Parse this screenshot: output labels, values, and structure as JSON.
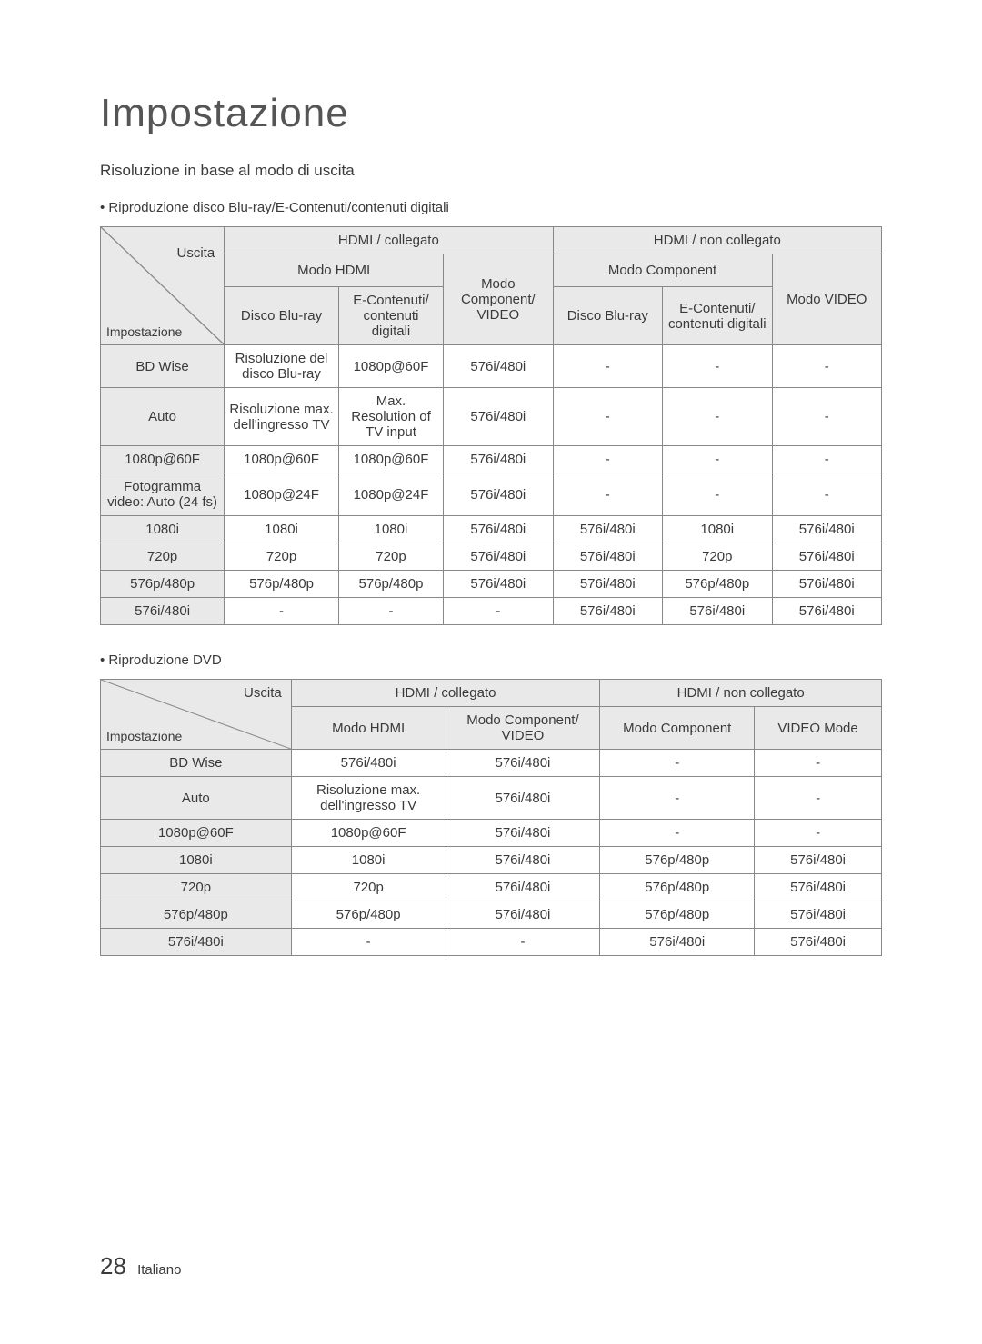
{
  "title": "Impostazione",
  "subtitle": "Risoluzione in base al modo di uscita",
  "bullet1": "• Riproduzione disco Blu-ray/E-Contenuti/contenuti digitali",
  "bullet2": "• Riproduzione DVD",
  "footer": {
    "page": "28",
    "lang": "Italiano"
  },
  "labels": {
    "uscita": "Uscita",
    "impostazione": "Impostazione"
  },
  "t1": {
    "h": {
      "hdmi_on": "HDMI / collegato",
      "hdmi_off": "HDMI / non collegato",
      "modo_hdmi": "Modo HDMI",
      "modo_comp_video": "Modo Component/ VIDEO",
      "modo_comp": "Modo Component",
      "modo_video": "Modo VIDEO",
      "disco_br": "Disco Blu-ray",
      "econt": "E-Contenuti/ contenuti digitali"
    },
    "rows": [
      {
        "c0": "BD Wise",
        "c1": "Risoluzione del disco Blu-ray",
        "c2": "1080p@60F",
        "c3": "576i/480i",
        "c4": "-",
        "c5": "-",
        "c6": "-"
      },
      {
        "c0": "Auto",
        "c1": "Risoluzione max. dell'ingresso TV",
        "c2": "Max. Resolution of TV input",
        "c3": "576i/480i",
        "c4": "-",
        "c5": "-",
        "c6": "-"
      },
      {
        "c0": "1080p@60F",
        "c1": "1080p@60F",
        "c2": "1080p@60F",
        "c3": "576i/480i",
        "c4": "-",
        "c5": "-",
        "c6": "-"
      },
      {
        "c0": "Fotogramma video: Auto (24 fs)",
        "c1": "1080p@24F",
        "c2": "1080p@24F",
        "c3": "576i/480i",
        "c4": "-",
        "c5": "-",
        "c6": "-"
      },
      {
        "c0": "1080i",
        "c1": "1080i",
        "c2": "1080i",
        "c3": "576i/480i",
        "c4": "576i/480i",
        "c5": "1080i",
        "c6": "576i/480i"
      },
      {
        "c0": "720p",
        "c1": "720p",
        "c2": "720p",
        "c3": "576i/480i",
        "c4": "576i/480i",
        "c5": "720p",
        "c6": "576i/480i"
      },
      {
        "c0": "576p/480p",
        "c1": "576p/480p",
        "c2": "576p/480p",
        "c3": "576i/480i",
        "c4": "576i/480i",
        "c5": "576p/480p",
        "c6": "576i/480i"
      },
      {
        "c0": "576i/480i",
        "c1": "-",
        "c2": "-",
        "c3": "-",
        "c4": "576i/480i",
        "c5": "576i/480i",
        "c6": "576i/480i"
      }
    ]
  },
  "t2": {
    "h": {
      "hdmi_on": "HDMI / collegato",
      "hdmi_off": "HDMI / non collegato",
      "modo_hdmi": "Modo HDMI",
      "modo_comp_video": "Modo Component/ VIDEO",
      "modo_comp": "Modo Component",
      "video_mode": "VIDEO Mode"
    },
    "rows": [
      {
        "c0": "BD Wise",
        "c1": "576i/480i",
        "c2": "576i/480i",
        "c3": "-",
        "c4": "-"
      },
      {
        "c0": "Auto",
        "c1": "Risoluzione max. dell'ingresso TV",
        "c2": "576i/480i",
        "c3": "-",
        "c4": "-"
      },
      {
        "c0": "1080p@60F",
        "c1": "1080p@60F",
        "c2": "576i/480i",
        "c3": "-",
        "c4": "-"
      },
      {
        "c0": "1080i",
        "c1": "1080i",
        "c2": "576i/480i",
        "c3": "576p/480p",
        "c4": "576i/480i"
      },
      {
        "c0": "720p",
        "c1": "720p",
        "c2": "576i/480i",
        "c3": "576p/480p",
        "c4": "576i/480i"
      },
      {
        "c0": "576p/480p",
        "c1": "576p/480p",
        "c2": "576i/480i",
        "c3": "576p/480p",
        "c4": "576i/480i"
      },
      {
        "c0": "576i/480i",
        "c1": "-",
        "c2": "-",
        "c3": "576i/480i",
        "c4": "576i/480i"
      }
    ]
  }
}
